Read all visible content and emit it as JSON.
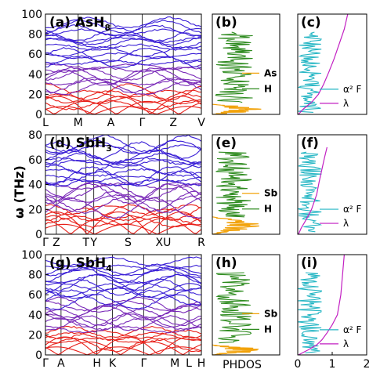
{
  "chart_data": {
    "type": "line",
    "y_axis_label": "ω (THz)",
    "x_axis_label_col2": "PHDOS",
    "colors": {
      "band_high": "#3a1fd6",
      "band_mid": "#7a2ab8",
      "band_low": "#e8201a",
      "phdos_h": "#2e8b1f",
      "phdos_heavy": "#f2a20a",
      "a2f": "#25b6c4",
      "lambda": "#c21fc2"
    },
    "rows": [
      {
        "compound": "AsH",
        "compound_sub": "8",
        "labels": {
          "bands": "(a)",
          "phdos": "(b)",
          "a2f": "(c)"
        },
        "ylim": [
          0,
          100
        ],
        "yticks": [
          "0",
          "20",
          "40",
          "60",
          "80",
          "100"
        ],
        "kpath": [
          "L",
          "M",
          "A",
          "Γ",
          "Z",
          "V"
        ],
        "kpos": [
          0,
          0.21,
          0.42,
          0.62,
          0.82,
          1.0
        ],
        "legend": [
          "As",
          "H"
        ],
        "a2f_legend": [
          "α² F",
          "λ"
        ],
        "lambda_curve": [
          [
            0.02,
            0
          ],
          [
            0.15,
            5
          ],
          [
            0.4,
            12
          ],
          [
            0.6,
            20
          ],
          [
            0.75,
            30
          ],
          [
            0.9,
            42
          ],
          [
            1.05,
            55
          ],
          [
            1.2,
            70
          ],
          [
            1.35,
            85
          ],
          [
            1.45,
            100
          ]
        ]
      },
      {
        "compound": "SbH",
        "compound_sub": "3",
        "labels": {
          "bands": "(d)",
          "phdos": "(e)",
          "a2f": "(f)"
        },
        "ylim": [
          0,
          80
        ],
        "yticks": [
          "0",
          "20",
          "40",
          "60",
          "80"
        ],
        "kpath": [
          "Γ",
          "Z",
          "T",
          "Y",
          "S",
          "X",
          "U",
          "R"
        ],
        "kpos": [
          0,
          0.07,
          0.26,
          0.31,
          0.53,
          0.73,
          0.78,
          1.0
        ],
        "legend": [
          "Sb",
          "H"
        ],
        "a2f_legend": [
          "α² F",
          "λ"
        ],
        "lambda_curve": [
          [
            0.02,
            0
          ],
          [
            0.1,
            5
          ],
          [
            0.25,
            12
          ],
          [
            0.4,
            20
          ],
          [
            0.55,
            32
          ],
          [
            0.62,
            42
          ],
          [
            0.7,
            52
          ],
          [
            0.78,
            62
          ],
          [
            0.85,
            70
          ]
        ]
      },
      {
        "compound": "SbH",
        "compound_sub": "4",
        "labels": {
          "bands": "(g)",
          "phdos": "(h)",
          "a2f": "(i)"
        },
        "ylim": [
          0,
          100
        ],
        "yticks": [
          "0",
          "20",
          "40",
          "60",
          "80",
          "100"
        ],
        "kpath": [
          "Γ",
          "A",
          "H",
          "K",
          "Γ",
          "M",
          "L",
          "H"
        ],
        "kpos": [
          0,
          0.1,
          0.33,
          0.43,
          0.63,
          0.83,
          0.92,
          1.0
        ],
        "legend": [
          "Sb",
          "H"
        ],
        "a2f_legend": [
          "α² F",
          "λ"
        ],
        "lambda_curve": [
          [
            0.02,
            0
          ],
          [
            0.3,
            5
          ],
          [
            0.55,
            10
          ],
          [
            0.7,
            15
          ],
          [
            0.85,
            22
          ],
          [
            1.0,
            30
          ],
          [
            1.15,
            40
          ],
          [
            1.2,
            50
          ],
          [
            1.25,
            60
          ],
          [
            1.3,
            80
          ],
          [
            1.35,
            100
          ]
        ]
      }
    ],
    "a2f_xticks": [
      "0",
      "1",
      "2"
    ],
    "a2f_xlim": [
      0,
      2
    ]
  }
}
